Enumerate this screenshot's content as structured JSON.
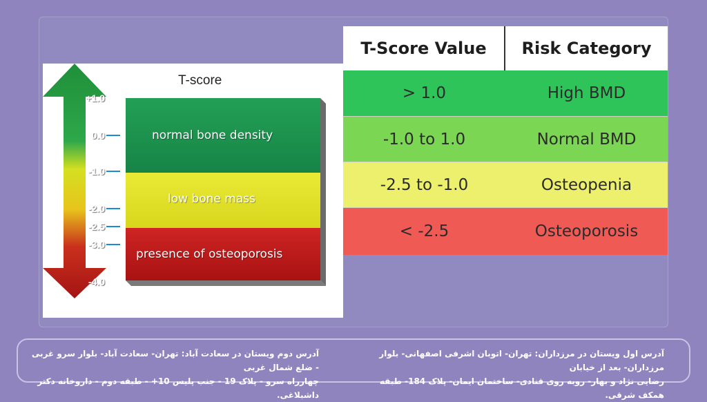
{
  "figure": {
    "title": "T-score",
    "zones": [
      {
        "label": "normal bone density",
        "color": "#1a9a52"
      },
      {
        "label": "low bone mass",
        "color": "#e6e62a"
      },
      {
        "label": "presence of osteoporosis",
        "color": "#c81f1f"
      }
    ],
    "ticks": [
      "+1.0",
      "0.0",
      "-1.0",
      "-2.0",
      "-2.5",
      "-3.0",
      "-4.0"
    ]
  },
  "table": {
    "headers": [
      "T-Score Value",
      "Risk Category"
    ],
    "rows": [
      {
        "value": "> 1.0",
        "category": "High BMD",
        "color": "#2ec45a"
      },
      {
        "value": "-1.0 to 1.0",
        "category": "Normal BMD",
        "color": "#7bd653"
      },
      {
        "value": "-2.5  to -1.0",
        "category": "Osteopenia",
        "color": "#ecf06c"
      },
      {
        "value": "< -2.5",
        "category": "Osteoporosis",
        "color": "#ef5a55"
      }
    ]
  },
  "footer": {
    "address_1_line1": "آدرس اول ویستان در مرزداران: تهران- اتوبان اشرفی اصفهانی- بلوار مرزداران- بعد از خیابان",
    "address_1_line2": "رضایی نژاد و بهار- روبه روی قنادی- ساختمان ایمان- پلاک 184- طبقه همکف شرقی.",
    "address_2_line1": "آدرس دوم ویستان در سعادت آباد: تهران- سعادت آباد- بلوار سرو غربی - ضلع شمال غربی",
    "address_2_line2": "چهارراه سرو - پلاک 19 - جنب پلیس 10+ - طبقه دوم - داروخانه دکتر داشبلاغی."
  }
}
